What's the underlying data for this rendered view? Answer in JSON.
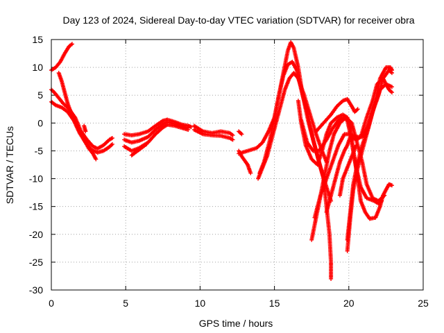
{
  "chart_data": {
    "type": "scatter",
    "title": "Day 123 of 2024, Sidereal Day-to-day VTEC variation (SDTVAR) for receiver obra",
    "xlabel": "GPS time / hours",
    "ylabel": "SDTVAR / TECUs",
    "xlim": [
      0,
      25
    ],
    "ylim": [
      -30,
      15
    ],
    "xticks": [
      0,
      5,
      10,
      15,
      20,
      25
    ],
    "yticks": [
      15,
      10,
      5,
      0,
      -5,
      -10,
      -15,
      -20,
      -25,
      -30
    ],
    "grid": true,
    "marker": "+",
    "color": "#ff0000",
    "series": [
      {
        "points": [
          [
            0,
            9.5
          ],
          [
            0.3,
            10
          ],
          [
            0.6,
            11
          ],
          [
            0.9,
            12.5
          ],
          [
            1.2,
            13.8
          ],
          [
            1.4,
            14.2
          ]
        ]
      },
      {
        "points": [
          [
            0,
            6
          ],
          [
            0.2,
            5.5
          ],
          [
            0.5,
            4.5
          ],
          [
            0.8,
            3.5
          ],
          [
            1.2,
            2.5
          ],
          [
            1.6,
            1
          ],
          [
            2,
            -1.5
          ],
          [
            2.4,
            -3
          ],
          [
            2.8,
            -4.2
          ],
          [
            3.1,
            -4.6
          ],
          [
            3.5,
            -4
          ],
          [
            3.9,
            -3
          ],
          [
            4.1,
            -2.7
          ]
        ]
      },
      {
        "points": [
          [
            0,
            3.8
          ],
          [
            0.3,
            3.2
          ],
          [
            0.7,
            2.8
          ],
          [
            1.1,
            2
          ],
          [
            1.5,
            0.5
          ],
          [
            1.9,
            -1.8
          ],
          [
            2.3,
            -3.5
          ],
          [
            2.7,
            -4.8
          ],
          [
            3.1,
            -5.3
          ],
          [
            3.5,
            -5
          ],
          [
            3.9,
            -4.3
          ],
          [
            4.1,
            -3.8
          ]
        ]
      },
      {
        "points": [
          [
            0.5,
            9
          ],
          [
            0.7,
            7.5
          ],
          [
            0.9,
            5.5
          ],
          [
            1.1,
            3.5
          ],
          [
            1.3,
            2
          ],
          [
            1.6,
            0.5
          ],
          [
            1.9,
            -1.5
          ],
          [
            2.2,
            -3
          ],
          [
            2.5,
            -4.5
          ],
          [
            2.8,
            -5.5
          ],
          [
            3,
            -6.5
          ]
        ]
      },
      {
        "points": [
          [
            2.2,
            -0.5
          ],
          [
            2.3,
            -1.5
          ]
        ]
      },
      {
        "points": [
          [
            4.9,
            -2
          ],
          [
            5.4,
            -2.2
          ],
          [
            5.9,
            -2
          ],
          [
            6.5,
            -1.5
          ],
          [
            7,
            -0.5
          ],
          [
            7.5,
            0.4
          ],
          [
            7.8,
            0.6
          ],
          [
            8.3,
            0.2
          ],
          [
            8.8,
            -0.3
          ],
          [
            9.2,
            -0.5
          ],
          [
            9.4,
            -0.7
          ]
        ]
      },
      {
        "points": [
          [
            4.9,
            -3
          ],
          [
            5.4,
            -3.5
          ],
          [
            5.9,
            -3.2
          ],
          [
            6.5,
            -2.5
          ],
          [
            7,
            -1.2
          ],
          [
            7.5,
            -0.2
          ],
          [
            7.8,
            0.2
          ],
          [
            8.3,
            -0.2
          ],
          [
            8.8,
            -0.6
          ],
          [
            9.2,
            -0.9
          ]
        ]
      },
      {
        "points": [
          [
            4.9,
            -4.2
          ],
          [
            5.4,
            -5
          ],
          [
            5.9,
            -4.5
          ],
          [
            6.5,
            -3.5
          ],
          [
            7,
            -2
          ],
          [
            7.5,
            -0.8
          ],
          [
            7.8,
            -0.3
          ],
          [
            8.3,
            -0.5
          ],
          [
            8.8,
            -0.9
          ],
          [
            9.2,
            -1.2
          ]
        ]
      },
      {
        "points": [
          [
            5.4,
            -5.8
          ],
          [
            5.9,
            -4.8
          ],
          [
            6.4,
            -3.8
          ]
        ]
      },
      {
        "points": [
          [
            9.6,
            -0.5
          ],
          [
            10.2,
            -1.5
          ],
          [
            10.8,
            -1.8
          ],
          [
            11.4,
            -1.5
          ],
          [
            12,
            -1.8
          ],
          [
            12.2,
            -2.2
          ]
        ]
      },
      {
        "points": [
          [
            9.6,
            -1.2
          ],
          [
            10.2,
            -2
          ],
          [
            10.8,
            -2.2
          ],
          [
            11.4,
            -2.3
          ],
          [
            12,
            -2.7
          ],
          [
            12.2,
            -3
          ]
        ]
      },
      {
        "points": [
          [
            12.6,
            -1.5
          ],
          [
            12.8,
            -2
          ]
        ]
      },
      {
        "points": [
          [
            12.6,
            -5
          ],
          [
            12.8,
            -6
          ],
          [
            13.2,
            -7.5
          ],
          [
            13.4,
            -9
          ]
        ]
      },
      {
        "points": [
          [
            12.6,
            -5.5
          ],
          [
            13.2,
            -5
          ],
          [
            13.8,
            -4.5
          ],
          [
            14.2,
            -3.5
          ],
          [
            14.6,
            -1.5
          ],
          [
            15,
            1
          ],
          [
            15.3,
            5
          ],
          [
            15.6,
            9
          ],
          [
            15.9,
            13
          ],
          [
            16.1,
            14.5
          ],
          [
            16.3,
            13.5
          ],
          [
            16.6,
            10
          ],
          [
            16.9,
            5
          ],
          [
            17.3,
            0
          ],
          [
            17.8,
            -5
          ],
          [
            18.3,
            -10
          ],
          [
            18.5,
            -15
          ],
          [
            18.7,
            -20
          ],
          [
            18.8,
            -25
          ],
          [
            18.8,
            -28
          ]
        ]
      },
      {
        "points": [
          [
            14,
            -9
          ],
          [
            14.3,
            -7
          ],
          [
            14.7,
            -3
          ],
          [
            15,
            1
          ],
          [
            15.3,
            5
          ],
          [
            15.6,
            8.5
          ],
          [
            15.9,
            10.5
          ],
          [
            16.2,
            11
          ],
          [
            16.5,
            9.5
          ],
          [
            16.8,
            6
          ],
          [
            17.2,
            2
          ],
          [
            17.6,
            -3
          ],
          [
            18.1,
            -8
          ],
          [
            18.5,
            -11.5
          ],
          [
            18.8,
            -14
          ]
        ]
      },
      {
        "points": [
          [
            13.9,
            -10
          ],
          [
            14.2,
            -8
          ],
          [
            14.5,
            -6
          ],
          [
            14.8,
            -3
          ],
          [
            15.1,
            0
          ],
          [
            15.4,
            3
          ],
          [
            15.7,
            6
          ],
          [
            16,
            8
          ],
          [
            16.3,
            9
          ],
          [
            16.6,
            8
          ],
          [
            17,
            5
          ],
          [
            17.4,
            1.5
          ],
          [
            17.8,
            -2
          ],
          [
            18.2,
            -5
          ],
          [
            18.5,
            -7
          ]
        ]
      },
      {
        "points": [
          [
            16.6,
            4
          ],
          [
            16.8,
            0
          ],
          [
            17.1,
            -4
          ],
          [
            17.5,
            -6.5
          ],
          [
            17.9,
            -7.5
          ],
          [
            18.2,
            -5
          ],
          [
            18.5,
            -2
          ],
          [
            18.8,
            0
          ],
          [
            19.2,
            1
          ],
          [
            19.6,
            1.5
          ],
          [
            19.9,
            1
          ],
          [
            20.1,
            -1
          ],
          [
            20.3,
            -5
          ],
          [
            20.6,
            -10
          ],
          [
            20.8,
            -14
          ],
          [
            21.1,
            -16
          ],
          [
            21.4,
            -17.2
          ],
          [
            21.8,
            -17
          ],
          [
            22.1,
            -15
          ],
          [
            22.3,
            -13
          ],
          [
            22.7,
            -11
          ],
          [
            22.9,
            -11.2
          ]
        ]
      },
      {
        "points": [
          [
            16.8,
            0.5
          ],
          [
            17.2,
            -3.5
          ],
          [
            17.6,
            -5
          ],
          [
            18,
            -5
          ],
          [
            18.5,
            -3
          ],
          [
            18.9,
            -1
          ],
          [
            19.3,
            0.5
          ],
          [
            19.6,
            1
          ],
          [
            19.9,
            0.5
          ],
          [
            20.1,
            -2
          ],
          [
            20.3,
            -5
          ],
          [
            20.5,
            -8
          ],
          [
            20.8,
            -11.5
          ],
          [
            21.2,
            -13.5
          ],
          [
            21.7,
            -14
          ],
          [
            22,
            -14.5
          ],
          [
            22.2,
            -14
          ]
        ]
      },
      {
        "points": [
          [
            17.5,
            -21
          ],
          [
            17.8,
            -17
          ],
          [
            18.1,
            -13
          ],
          [
            18.4,
            -9
          ],
          [
            18.7,
            -5
          ],
          [
            19,
            -2
          ],
          [
            19.4,
            0
          ],
          [
            19.8,
            1
          ],
          [
            20.2,
            0
          ],
          [
            20.5,
            -3
          ],
          [
            20.9,
            -7
          ],
          [
            21.2,
            -11
          ],
          [
            21.6,
            -13.5
          ],
          [
            22,
            -14
          ],
          [
            22.4,
            -13
          ]
        ]
      },
      {
        "points": [
          [
            17.7,
            -17
          ],
          [
            18.1,
            -13
          ],
          [
            18.5,
            -10
          ],
          [
            18.9,
            -7
          ],
          [
            19.3,
            -4
          ],
          [
            19.7,
            -2
          ],
          [
            20.1,
            -2
          ],
          [
            20.5,
            -2.5
          ],
          [
            20.9,
            -2.5
          ],
          [
            21.2,
            -1
          ],
          [
            21.6,
            2
          ],
          [
            22,
            5
          ],
          [
            22.3,
            8
          ],
          [
            22.7,
            9.5
          ],
          [
            22.9,
            9
          ]
        ]
      },
      {
        "points": [
          [
            17.8,
            -1.5
          ],
          [
            18.3,
            0
          ],
          [
            18.8,
            1.5
          ],
          [
            19.2,
            3
          ],
          [
            19.6,
            4
          ],
          [
            19.9,
            4.3
          ],
          [
            20.2,
            3
          ],
          [
            20.4,
            2
          ],
          [
            20.6,
            2.5
          ]
        ]
      },
      {
        "points": [
          [
            18.5,
            -16
          ],
          [
            18.8,
            -13
          ],
          [
            19.1,
            -10
          ],
          [
            19.4,
            -7
          ],
          [
            19.7,
            -5
          ],
          [
            19.9,
            -4
          ],
          [
            20.1,
            -2.5
          ],
          [
            20.5,
            -3
          ],
          [
            20.8,
            -2.5
          ],
          [
            21.2,
            1
          ],
          [
            21.6,
            4
          ],
          [
            21.9,
            7
          ],
          [
            22.3,
            8
          ],
          [
            22.7,
            6
          ],
          [
            22.9,
            5.5
          ]
        ]
      },
      {
        "points": [
          [
            19.4,
            -13
          ],
          [
            19.6,
            -10
          ],
          [
            19.9,
            -8
          ],
          [
            20.2,
            -6
          ],
          [
            20.5,
            -4
          ]
        ]
      },
      {
        "points": [
          [
            19.9,
            -23
          ],
          [
            20.1,
            -17
          ],
          [
            20.3,
            -12
          ],
          [
            20.6,
            -8
          ],
          [
            21,
            -4
          ],
          [
            21.4,
            0
          ],
          [
            21.8,
            4
          ],
          [
            22.1,
            8
          ],
          [
            22.5,
            10
          ],
          [
            22.8,
            10
          ],
          [
            22.9,
            9.5
          ]
        ]
      },
      {
        "points": [
          [
            19.9,
            -21
          ],
          [
            20.1,
            -16
          ],
          [
            20.3,
            -11
          ],
          [
            20.6,
            -7
          ],
          [
            20.9,
            -4
          ],
          [
            21.3,
            -1
          ],
          [
            21.7,
            3
          ],
          [
            22.1,
            6
          ],
          [
            22.5,
            7
          ],
          [
            22.9,
            6.5
          ]
        ]
      }
    ]
  }
}
